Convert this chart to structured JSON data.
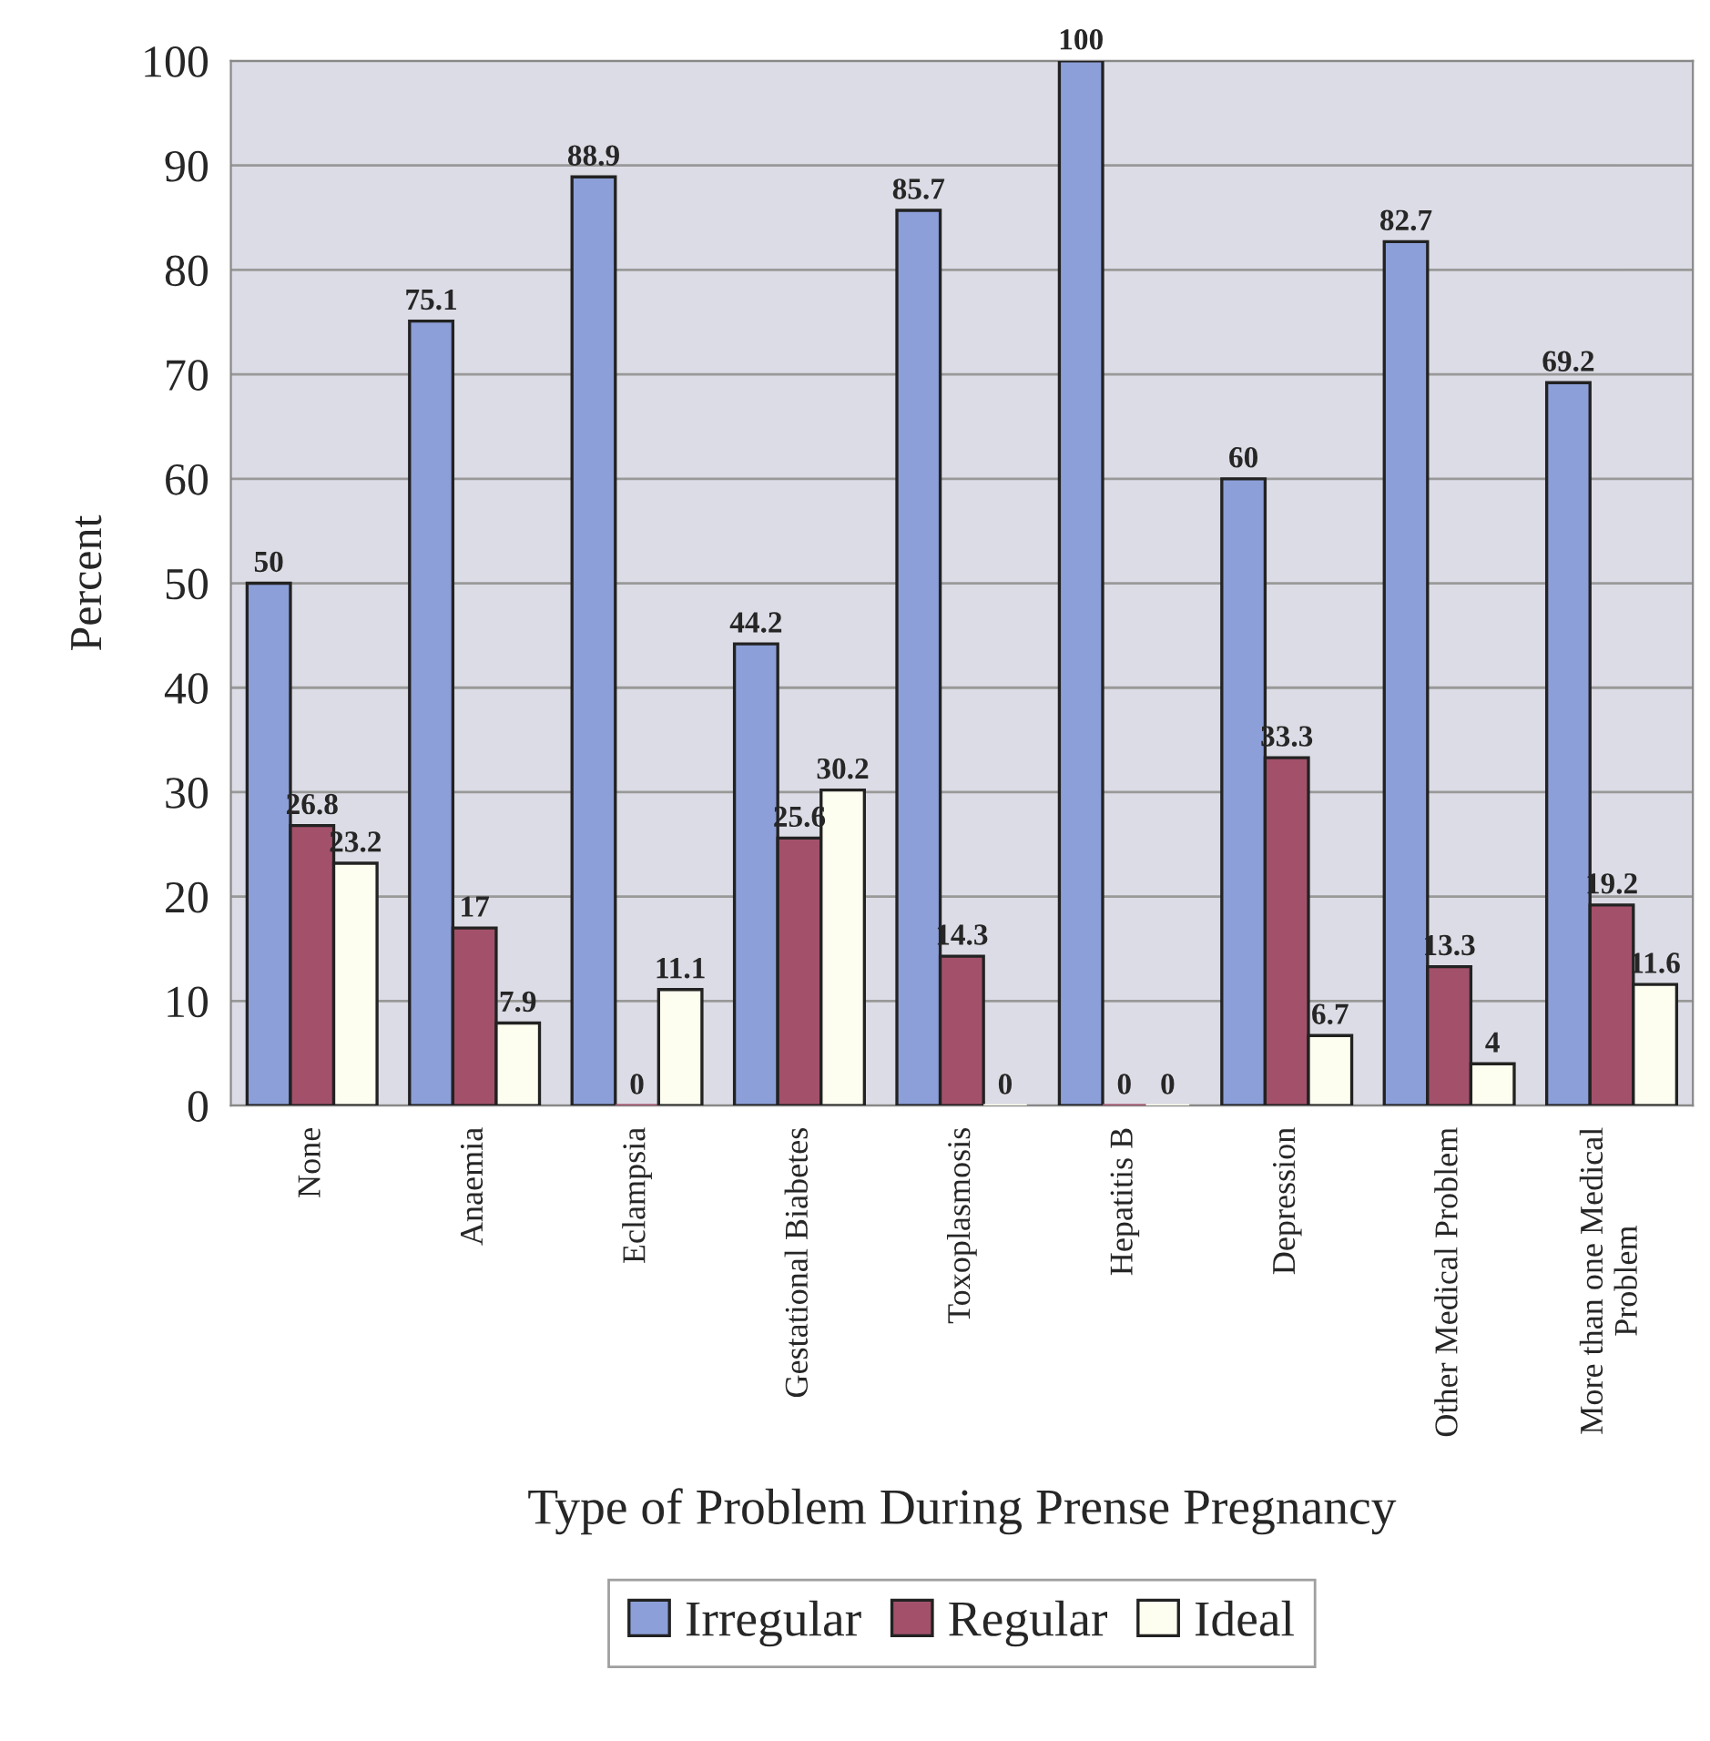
{
  "chart_data": {
    "type": "bar",
    "xlabel": "Type of Problem During Prense Pregnancy",
    "ylabel": "Percent",
    "categories": [
      "None",
      "Anaemia",
      "Eclampsia",
      "Gestational Biabetes",
      "Toxoplasmosis",
      "Hepatitis B",
      "Depression",
      "Other Medical Problem",
      "More than one Medical\nProblem"
    ],
    "series": [
      {
        "name": "Irregular",
        "color": "#8c9fd8",
        "values": [
          50,
          75.1,
          88.9,
          44.2,
          85.7,
          100,
          60,
          82.7,
          69.2
        ]
      },
      {
        "name": "Regular",
        "color": "#a3516b",
        "values": [
          26.8,
          17,
          0,
          25.6,
          14.3,
          0,
          33.3,
          13.3,
          19.2
        ]
      },
      {
        "name": "Ideal",
        "color": "#fdfdf0",
        "values": [
          23.2,
          7.9,
          11.1,
          30.2,
          0,
          0,
          6.7,
          4,
          11.6
        ]
      }
    ],
    "ylim": [
      0,
      100
    ],
    "yticks": [
      0,
      10,
      20,
      30,
      40,
      50,
      60,
      70,
      80,
      90,
      100
    ],
    "grid": "y",
    "legend": "bottom",
    "data_labels": true
  }
}
